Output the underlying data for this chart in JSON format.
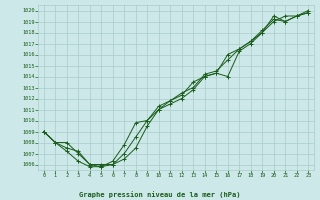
{
  "title": "Graphe pression niveau de la mer (hPa)",
  "bg_color": "#cce8e8",
  "grid_color": "#aacccc",
  "line_color": "#1a5c1a",
  "marker_color": "#1a5c1a",
  "axis_label_color": "#1a5c1a",
  "title_color": "#1a5c1a",
  "xlim": [
    -0.5,
    23.5
  ],
  "ylim": [
    1005.5,
    1020.5
  ],
  "yticks": [
    1006,
    1007,
    1008,
    1009,
    1010,
    1011,
    1012,
    1013,
    1014,
    1015,
    1016,
    1017,
    1018,
    1019,
    1020
  ],
  "xticks": [
    0,
    1,
    2,
    3,
    4,
    5,
    6,
    7,
    8,
    9,
    10,
    11,
    12,
    13,
    14,
    15,
    16,
    17,
    18,
    19,
    20,
    21,
    22,
    23
  ],
  "line1": [
    1009,
    1008,
    1008,
    1007,
    1006,
    1005.8,
    1006.0,
    1006.5,
    1007.5,
    1009.5,
    1011.0,
    1011.5,
    1012.0,
    1012.8,
    1014.0,
    1014.3,
    1014.0,
    1016.3,
    1017.0,
    1018.0,
    1019.5,
    1019.0,
    1019.5,
    1020.0
  ],
  "line2": [
    1009,
    1008,
    1007.5,
    1007.2,
    1006.0,
    1006.0,
    1006.0,
    1007.0,
    1008.5,
    1010.0,
    1011.0,
    1011.8,
    1012.5,
    1013.0,
    1014.2,
    1014.5,
    1015.5,
    1016.5,
    1017.2,
    1018.0,
    1019.0,
    1019.5,
    1019.5,
    1019.8
  ],
  "line3": [
    1009,
    1008,
    1007.2,
    1006.3,
    1005.8,
    1005.8,
    1006.3,
    1007.8,
    1009.8,
    1010.0,
    1011.3,
    1011.8,
    1012.3,
    1013.5,
    1014.0,
    1014.3,
    1016.0,
    1016.5,
    1017.2,
    1018.2,
    1019.2,
    1019.0,
    1019.5,
    1019.8
  ]
}
